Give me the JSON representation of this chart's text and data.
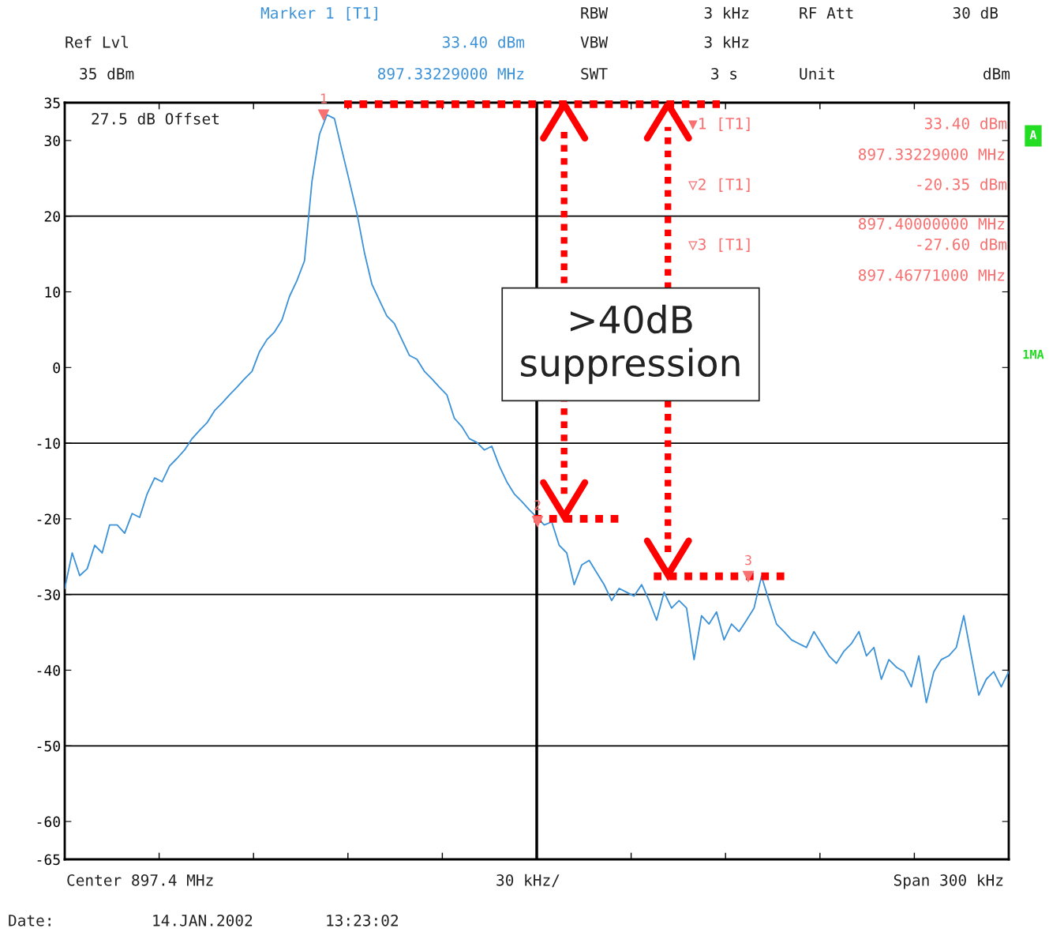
{
  "chart_data": {
    "type": "line",
    "ylim": [
      -65,
      35
    ],
    "yticks": [
      35,
      30,
      20,
      10,
      0,
      -10,
      -20,
      -30,
      -40,
      -50,
      -60,
      -65
    ],
    "tick_labels": "y",
    "grid": false,
    "legend": false,
    "marker": "none",
    "line_style": "solid",
    "ref_lines": [
      {
        "axis": "y",
        "value": 20,
        "color": "#000000"
      },
      {
        "axis": "y",
        "value": -10,
        "color": "#000000"
      },
      {
        "axis": "y",
        "value": -30,
        "color": "#000000"
      },
      {
        "axis": "y",
        "value": -50,
        "color": "#000000"
      },
      {
        "axis": "y",
        "value": 34.8,
        "color": "#ff0000",
        "line_style": "dotted"
      },
      {
        "axis": "y",
        "value": -20,
        "color": "#ff0000",
        "line_style": "dotted"
      },
      {
        "axis": "y",
        "value": -27.6,
        "color": "#ff0000",
        "line_style": "dotted"
      }
    ],
    "categories": [
      null,
      null,
      null,
      null,
      null,
      null,
      null,
      null,
      null,
      null,
      null,
      null,
      null,
      null,
      null,
      null,
      null,
      null,
      null,
      null,
      null,
      null,
      null,
      null,
      null,
      null,
      null,
      null,
      null,
      null,
      null,
      null,
      null,
      null,
      null,
      null,
      null,
      null,
      null,
      null,
      null,
      null,
      null,
      null,
      null,
      null,
      null,
      null,
      null,
      null,
      null,
      null,
      null,
      null,
      null,
      null,
      null,
      null,
      null,
      null,
      null,
      null,
      null,
      null,
      null,
      null,
      null,
      null,
      null,
      null,
      null,
      null,
      null,
      null,
      null,
      null,
      null,
      null,
      null,
      null,
      null,
      null,
      null,
      null,
      null,
      null,
      null,
      null,
      null,
      null,
      null,
      null,
      null,
      null,
      null,
      null,
      null,
      null,
      null,
      null,
      null,
      null,
      null,
      null,
      null,
      null,
      null,
      null,
      null,
      null,
      null,
      null,
      null,
      null,
      null,
      null,
      null,
      null,
      null,
      null,
      null,
      null,
      null,
      null,
      null,
      null,
      null
    ],
    "series": [
      {
        "color": "#3c92d8",
        "values": [
          -29.2,
          -24.5,
          -27.5,
          -26.6,
          -23.5,
          -24.5,
          -20.8,
          -20.8,
          -21.9,
          -19.3,
          -19.8,
          -16.7,
          -14.6,
          -15.1,
          -13.0,
          -12.0,
          -10.9,
          -9.4,
          -8.3,
          -7.3,
          -5.7,
          -4.7,
          -3.6,
          -2.6,
          -1.5,
          -0.5,
          2.1,
          3.7,
          4.7,
          6.3,
          9.4,
          11.5,
          14.1,
          24.6,
          30.8,
          33.4,
          32.9,
          28.7,
          24.6,
          20.4,
          15.2,
          11.0,
          8.9,
          6.8,
          5.8,
          3.7,
          1.6,
          1.1,
          -0.5,
          -1.5,
          -2.6,
          -3.6,
          -6.7,
          -7.8,
          -9.4,
          -9.9,
          -10.9,
          -10.4,
          -13.0,
          -15.1,
          -16.7,
          -17.7,
          -18.8,
          -19.8,
          -20.8,
          -20.4,
          -23.5,
          -24.5,
          -28.7,
          -26.1,
          -25.5,
          -27.1,
          -28.7,
          -30.8,
          -29.2,
          -29.7,
          -30.2,
          -28.7,
          -30.8,
          -33.4,
          -29.7,
          -31.8,
          -30.8,
          -31.8,
          -38.6,
          -32.8,
          -33.9,
          -32.3,
          -36.0,
          -33.9,
          -34.9,
          -33.4,
          -31.8,
          -27.6,
          -30.8,
          -33.9,
          -34.9,
          -36.0,
          -36.5,
          -37.0,
          -34.9,
          -36.5,
          -38.1,
          -39.1,
          -37.5,
          -36.5,
          -34.9,
          -38.1,
          -37.0,
          -41.2,
          -38.6,
          -39.6,
          -40.2,
          -42.2,
          -38.1,
          -44.3,
          -40.2,
          -38.6,
          -38.1,
          -37.0,
          -32.8,
          -38.1,
          -43.3,
          -41.2,
          -40.2,
          -42.2,
          -40.2
        ]
      }
    ],
    "annotations": [
      "Marker 1 [T1]",
      "Ref Lvl",
      "33.40 dBm",
      "35 dBm",
      "897.33229000 MHz",
      "RBW",
      "3 kHz",
      "VBW",
      "3 kHz",
      "SWT",
      "3 s",
      "RF Att",
      "30 dB",
      "Unit",
      "dBm",
      "27.5 dB Offset",
      "▼1 [T1]",
      "33.40 dBm",
      "897.33229000 MHz",
      "▽2 [T1]",
      "-20.35 dBm",
      "897.40000000 MHz",
      "▽3 [T1]",
      "-27.60 dBm",
      "897.46771000 MHz",
      "A",
      "1MA",
      ">40dB\nsuppression",
      "Center 897.4 MHz",
      "30 kHz/",
      "Span 300 kHz",
      "Date:",
      "14.JAN.2002",
      "13:23:02",
      {
        "text": "1",
        "y": 33.4
      },
      {
        "text": "2",
        "y": -20.35
      },
      {
        "text": "3",
        "y": -27.6
      }
    ]
  }
}
